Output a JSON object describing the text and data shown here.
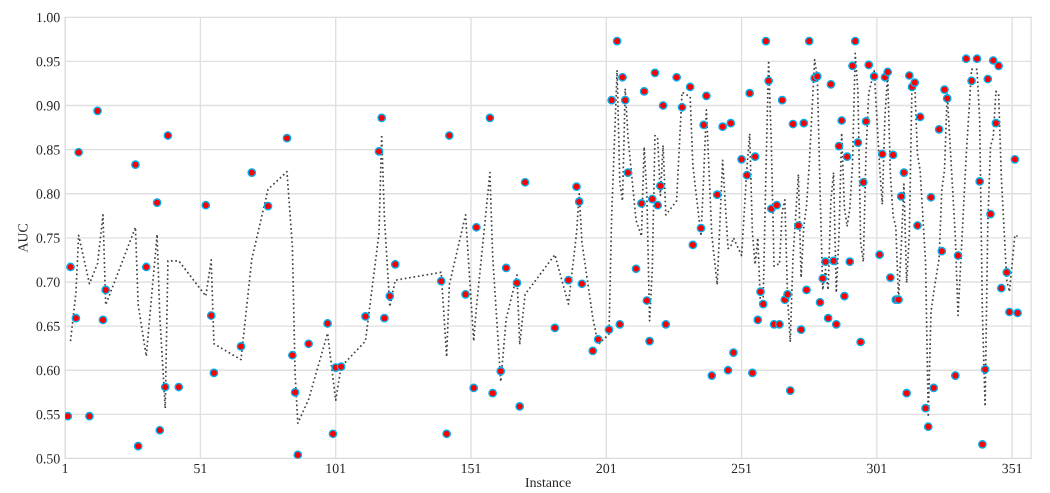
{
  "chart_data": {
    "type": "scatter",
    "xlabel": "Instance",
    "ylabel": "AUC",
    "xlim": [
      1,
      358
    ],
    "xticks": [
      1,
      51,
      101,
      151,
      201,
      251,
      301,
      351
    ],
    "ylim": [
      0.5,
      1.0
    ],
    "yticks": [
      {
        "value": 0.5,
        "label": "0.50"
      },
      {
        "value": 0.55,
        "label": "0.55"
      },
      {
        "value": 0.6,
        "label": "0.60"
      },
      {
        "value": 0.65,
        "label": "0.65"
      },
      {
        "value": 0.7,
        "label": "0.70"
      },
      {
        "value": 0.75,
        "label": "0.75"
      },
      {
        "value": 0.8,
        "label": "0.80"
      },
      {
        "value": 0.85,
        "label": "0.85"
      },
      {
        "value": 0.9,
        "label": "0.90"
      },
      {
        "value": 0.95,
        "label": "0.95"
      },
      {
        "value": 1.0,
        "label": "1.00"
      }
    ],
    "grid": true,
    "series": [
      {
        "color": "#ff0000",
        "marker": "circle",
        "x": [
          2,
          3,
          5,
          6,
          10,
          13,
          15,
          16,
          27,
          28,
          31,
          35,
          36,
          38,
          39,
          43,
          53,
          55,
          56,
          66,
          70,
          76,
          83,
          85,
          86,
          87,
          91,
          98,
          100,
          101,
          103,
          112,
          117,
          118,
          119,
          121,
          123,
          140,
          142,
          143,
          149,
          152,
          153,
          158,
          159,
          162,
          164,
          168,
          169,
          171,
          182,
          187,
          190,
          191,
          192,
          196,
          198,
          202,
          203,
          205,
          206,
          207,
          208,
          209,
          212,
          214,
          215,
          216,
          217,
          218,
          219,
          220,
          221,
          222,
          223,
          227,
          229,
          232,
          233,
          236,
          237,
          238,
          240,
          242,
          244,
          246,
          247,
          248,
          251,
          253,
          254,
          255,
          256,
          257,
          258,
          259,
          260,
          261,
          262,
          263,
          264,
          265,
          266,
          267,
          268,
          269,
          270,
          272,
          273,
          274,
          275,
          276,
          278,
          279,
          280,
          281,
          282,
          283,
          284,
          285,
          286,
          287,
          288,
          289,
          290,
          291,
          292,
          293,
          294,
          295,
          296,
          297,
          298,
          300,
          302,
          303,
          304,
          305,
          306,
          307,
          308,
          309,
          310,
          311,
          312,
          313,
          314,
          315,
          316,
          317,
          319,
          320,
          321,
          322,
          324,
          325,
          326,
          327,
          330,
          331,
          334,
          336,
          338,
          339,
          340,
          341,
          342,
          343,
          344,
          345,
          346,
          347,
          349,
          350,
          352,
          353
        ],
        "values": [
          0.548,
          0.717,
          0.659,
          0.847,
          0.548,
          0.894,
          0.657,
          0.691,
          0.833,
          0.514,
          0.717,
          0.79,
          0.532,
          0.581,
          0.866,
          0.581,
          0.787,
          0.662,
          0.597,
          0.627,
          0.824,
          0.786,
          0.863,
          0.617,
          0.575,
          0.504,
          0.63,
          0.653,
          0.528,
          0.603,
          0.604,
          0.661,
          0.848,
          0.886,
          0.659,
          0.684,
          0.72,
          0.701,
          0.528,
          0.866,
          0.686,
          0.58,
          0.762,
          0.886,
          0.574,
          0.599,
          0.716,
          0.699,
          0.559,
          0.813,
          0.648,
          0.702,
          0.808,
          0.791,
          0.698,
          0.622,
          0.635,
          0.646,
          0.906,
          0.973,
          0.652,
          0.932,
          0.906,
          0.824,
          0.715,
          0.789,
          0.916,
          0.679,
          0.633,
          0.794,
          0.937,
          0.787,
          0.809,
          0.9,
          0.652,
          0.932,
          0.898,
          0.921,
          0.742,
          0.761,
          0.878,
          0.911,
          0.594,
          0.799,
          0.876,
          0.6,
          0.88,
          0.62,
          0.839,
          0.821,
          0.914,
          0.597,
          0.842,
          0.657,
          0.689,
          0.675,
          0.973,
          0.928,
          0.783,
          0.652,
          0.787,
          0.652,
          0.906,
          0.68,
          0.686,
          0.577,
          0.879,
          0.764,
          0.646,
          0.88,
          0.691,
          0.973,
          0.931,
          0.933,
          0.677,
          0.704,
          0.723,
          0.659,
          0.924,
          0.724,
          0.652,
          0.854,
          0.883,
          0.684,
          0.842,
          0.723,
          0.945,
          0.973,
          0.858,
          0.632,
          0.813,
          0.882,
          0.946,
          0.933,
          0.731,
          0.845,
          0.932,
          0.938,
          0.705,
          0.844,
          0.68,
          0.68,
          0.797,
          0.824,
          0.574,
          0.934,
          0.921,
          0.926,
          0.764,
          0.887,
          0.557,
          0.536,
          0.796,
          0.58,
          0.873,
          0.735,
          0.918,
          0.908,
          0.594,
          0.73,
          0.953,
          0.928,
          0.953,
          0.814,
          0.516,
          0.601,
          0.93,
          0.777,
          0.951,
          0.88,
          0.945,
          0.693,
          0.711,
          0.666,
          0.839,
          0.665
        ]
      },
      {
        "type": "line",
        "color": "#404040",
        "line_style": "dotted",
        "x": [
          3,
          5,
          6,
          10,
          13,
          15,
          16,
          27,
          28,
          31,
          35,
          36,
          38,
          39,
          43,
          53,
          55,
          56,
          66,
          70,
          76,
          83,
          85,
          86,
          87,
          91,
          98,
          100,
          101,
          103,
          112,
          117,
          118,
          119,
          121,
          123,
          140,
          142,
          143,
          149,
          152,
          153,
          158,
          159,
          162,
          164,
          168,
          169,
          171,
          182,
          187,
          190,
          191,
          192,
          196,
          198,
          202,
          203,
          205,
          206,
          207,
          208,
          209,
          212,
          214,
          215,
          216,
          217,
          218,
          219,
          220,
          221,
          222,
          223,
          227,
          229,
          232,
          233,
          236,
          237,
          238,
          240,
          242,
          244,
          246,
          247,
          248,
          251,
          253,
          254,
          255,
          256,
          257,
          258,
          259,
          260,
          261,
          262,
          263,
          264,
          265,
          266,
          267,
          268,
          269,
          270,
          272,
          273,
          274,
          275,
          276,
          278,
          279,
          280,
          281,
          282,
          283,
          284,
          285,
          286,
          287,
          288,
          289,
          290,
          291,
          292,
          293,
          294,
          295,
          296,
          297,
          298,
          300,
          302,
          303,
          304,
          305,
          306,
          307,
          308,
          309,
          310,
          311,
          312,
          313,
          314,
          315,
          316,
          317,
          319,
          320,
          321,
          322,
          324,
          325,
          326,
          327,
          330,
          331,
          334,
          336,
          338,
          339,
          340,
          341,
          342,
          343,
          344,
          345,
          346,
          347,
          349,
          350,
          352,
          353
        ],
        "values": [
          0.633,
          0.688,
          0.753,
          0.698,
          0.721,
          0.776,
          0.674,
          0.762,
          0.674,
          0.616,
          0.754,
          0.661,
          0.557,
          0.724,
          0.724,
          0.684,
          0.725,
          0.63,
          0.612,
          0.726,
          0.805,
          0.825,
          0.74,
          0.596,
          0.54,
          0.567,
          0.642,
          0.591,
          0.566,
          0.604,
          0.633,
          0.755,
          0.867,
          0.773,
          0.672,
          0.702,
          0.711,
          0.615,
          0.697,
          0.776,
          0.633,
          0.671,
          0.824,
          0.73,
          0.587,
          0.658,
          0.708,
          0.629,
          0.686,
          0.731,
          0.675,
          0.755,
          0.8,
          0.745,
          0.66,
          0.629,
          0.641,
          0.776,
          0.94,
          0.813,
          0.792,
          0.919,
          0.865,
          0.77,
          0.752,
          0.853,
          0.798,
          0.656,
          0.714,
          0.866,
          0.862,
          0.798,
          0.855,
          0.776,
          0.792,
          0.915,
          0.91,
          0.832,
          0.752,
          0.82,
          0.895,
          0.753,
          0.697,
          0.838,
          0.738,
          0.74,
          0.75,
          0.73,
          0.83,
          0.868,
          0.756,
          0.72,
          0.75,
          0.673,
          0.682,
          0.824,
          0.951,
          0.856,
          0.718,
          0.72,
          0.72,
          0.779,
          0.793,
          0.683,
          0.632,
          0.728,
          0.822,
          0.705,
          0.763,
          0.786,
          0.832,
          0.952,
          0.932,
          0.805,
          0.691,
          0.714,
          0.691,
          0.792,
          0.824,
          0.688,
          0.753,
          0.869,
          0.784,
          0.763,
          0.783,
          0.834,
          0.959,
          0.916,
          0.745,
          0.723,
          0.848,
          0.914,
          0.94,
          0.832,
          0.788,
          0.889,
          0.935,
          0.822,
          0.775,
          0.762,
          0.68,
          0.739,
          0.811,
          0.699,
          0.754,
          0.928,
          0.924,
          0.845,
          0.826,
          0.722,
          0.547,
          0.666,
          0.688,
          0.727,
          0.804,
          0.827,
          0.913,
          0.751,
          0.662,
          0.842,
          0.941,
          0.941,
          0.884,
          0.665,
          0.559,
          0.766,
          0.854,
          0.864,
          0.916,
          0.913,
          0.819,
          0.702,
          0.689,
          0.753,
          0.752
        ]
      }
    ]
  }
}
